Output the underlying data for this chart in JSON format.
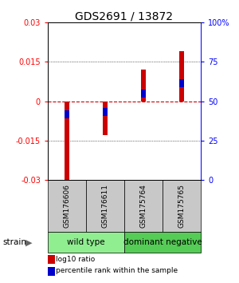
{
  "title": "GDS2691 / 13872",
  "samples": [
    "GSM176606",
    "GSM176611",
    "GSM175764",
    "GSM175765"
  ],
  "red_values": [
    -0.031,
    -0.013,
    0.012,
    0.019
  ],
  "blue_values": [
    -0.005,
    -0.004,
    0.003,
    0.007
  ],
  "ylim": [
    -0.03,
    0.03
  ],
  "yticks_left": [
    -0.03,
    -0.015,
    0,
    0.015,
    0.03
  ],
  "yticks_right": [
    0,
    25,
    50,
    75,
    100
  ],
  "ytick_labels_left": [
    "-0.03",
    "-0.015",
    "0",
    "0.015",
    "0.03"
  ],
  "ytick_labels_right": [
    "0",
    "25",
    "50",
    "75",
    "100%"
  ],
  "groups": [
    {
      "label": "wild type",
      "indices": [
        0,
        1
      ],
      "color": "#90EE90"
    },
    {
      "label": "dominant negative",
      "indices": [
        2,
        3
      ],
      "color": "#55CC55"
    }
  ],
  "bar_width": 0.12,
  "blue_bar_height": 0.003,
  "red_color": "#CC0000",
  "blue_color": "#0000CC",
  "zero_line_color": "#CC0000",
  "label_red": "log10 ratio",
  "label_blue": "percentile rank within the sample",
  "strain_label": "strain",
  "title_fontsize": 10,
  "tick_fontsize": 7,
  "sample_label_fontsize": 6.5,
  "group_label_fontsize": 7.5,
  "legend_fontsize": 6.5
}
